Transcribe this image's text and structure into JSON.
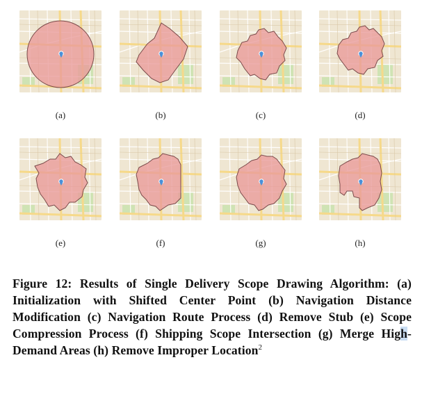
{
  "figure": {
    "panel_labels": [
      "(a)",
      "(b)",
      "(c)",
      "(d)",
      "(e)",
      "(f)",
      "(g)",
      "(h)"
    ],
    "caption": {
      "part1": "Figure 12: Results of Single Delivery Scope Drawing Algorithm: (a) Initialization with Shifted Center Point (b) Navigation Distance Modification (c) Navigation Route Process (d) Remove Stub (e) Scope Compression Process (f) Shipping Scope Intersection (g) Merge Hig",
      "highlight": "h",
      "part2": "-Demand Areas (h) Remove Improper Location",
      "footnote": "2"
    }
  },
  "colors": {
    "map_bg": "#efe6d2",
    "road_major": "#f6d98a",
    "road_minor": "#ffffff",
    "park": "#cfe3b4",
    "scope_fill": "#e99a9a",
    "scope_stroke": "#7a4a4a",
    "pin": "#4a90d9"
  }
}
